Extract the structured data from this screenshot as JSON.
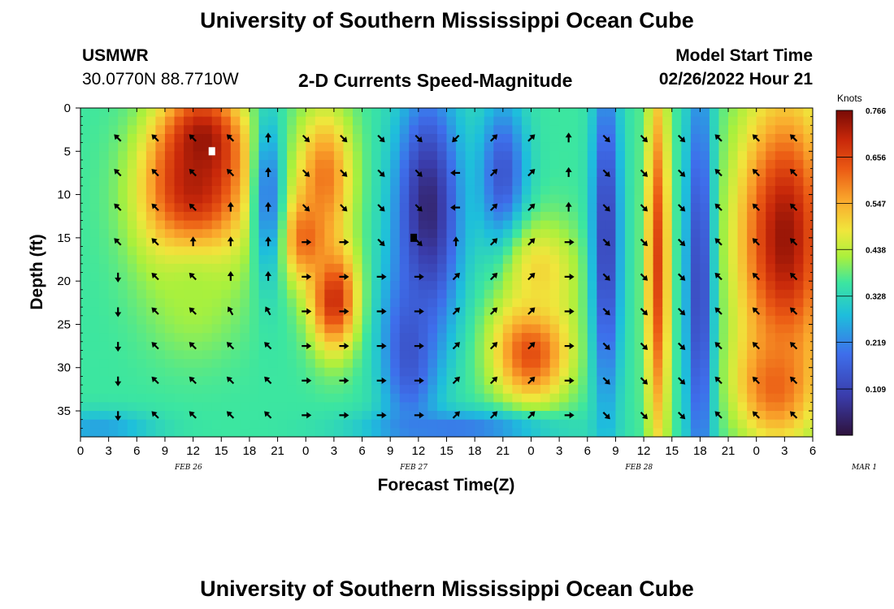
{
  "header": {
    "title": "University of Southern Mississippi Ocean Cube",
    "station": "USMWR",
    "coords": "30.0770N  88.7710W",
    "chart_heading": "2-D Currents Speed-Magnitude",
    "model_label": "Model Start Time",
    "model_time": "02/26/2022 Hour 21"
  },
  "footer": {
    "title": "University of Southern Mississippi Ocean Cube"
  },
  "chart_data": {
    "type": "heatmap",
    "title": "2-D Currents Speed-Magnitude",
    "xlabel": "Forecast Time(Z)",
    "ylabel": "Depth (ft)",
    "x_ticks": [
      "0",
      "3",
      "6",
      "9",
      "12",
      "15",
      "18",
      "21",
      "0",
      "3",
      "6",
      "9",
      "12",
      "15",
      "18",
      "21",
      "0",
      "3",
      "6",
      "9",
      "12",
      "15",
      "18",
      "21",
      "0",
      "3",
      "6"
    ],
    "x_range_hours": [
      0,
      78
    ],
    "date_labels": [
      {
        "text": "FEB 26",
        "hour": 12
      },
      {
        "text": "FEB 27",
        "hour": 36
      },
      {
        "text": "FEB 28",
        "hour": 60
      },
      {
        "text": "MAR 1",
        "hour": 84
      }
    ],
    "y_ticks": [
      0,
      5,
      10,
      15,
      20,
      25,
      30,
      35
    ],
    "y_range_ft": [
      0,
      38
    ],
    "y_inverted": true,
    "colorbar": {
      "unit": "Knots",
      "min": 0.0,
      "max": 0.766,
      "tick_values": [
        0.766,
        0.656,
        0.547,
        0.438,
        0.328,
        0.219,
        0.109
      ],
      "tick_labels": [
        "0.766",
        "0.656",
        "0.547",
        "0.438",
        "0.328",
        "0.219",
        "0.109"
      ]
    },
    "speed_features": [
      {
        "hour": 12,
        "depth": 10,
        "speed": 0.72,
        "hw": 5.5,
        "hd": 9
      },
      {
        "hour": 13,
        "depth": 4,
        "speed": 0.74,
        "hw": 4,
        "hd": 6
      },
      {
        "hour": 12,
        "depth": 22,
        "speed": 0.42,
        "hw": 5,
        "hd": 7
      },
      {
        "hour": 27,
        "depth": 22,
        "speed": 0.7,
        "hw": 2.5,
        "hd": 6
      },
      {
        "hour": 26,
        "depth": 8,
        "speed": 0.6,
        "hw": 3,
        "hd": 8
      },
      {
        "hour": 24,
        "depth": 15,
        "speed": 0.62,
        "hw": 2.5,
        "hd": 5
      },
      {
        "hour": 37,
        "depth": 12,
        "speed": 0.04,
        "hw": 3.5,
        "hd": 14
      },
      {
        "hour": 35,
        "depth": 28,
        "speed": 0.14,
        "hw": 3,
        "hd": 10
      },
      {
        "hour": 20,
        "depth": 10,
        "speed": 0.2,
        "hw": 1.5,
        "hd": 10
      },
      {
        "hour": 45,
        "depth": 8,
        "speed": 0.14,
        "hw": 2.5,
        "hd": 9
      },
      {
        "hour": 48,
        "depth": 28,
        "speed": 0.66,
        "hw": 4,
        "hd": 6
      },
      {
        "hour": 49,
        "depth": 19,
        "speed": 0.5,
        "hw": 4,
        "hd": 6
      },
      {
        "hour": 56,
        "depth": 15,
        "speed": 0.1,
        "hw": 1.5,
        "hd": 20
      },
      {
        "hour": 61.5,
        "depth": 18,
        "speed": 0.66,
        "hw": 1.2,
        "hd": 22
      },
      {
        "hour": 66,
        "depth": 20,
        "speed": 0.09,
        "hw": 1.5,
        "hd": 25
      },
      {
        "hour": 75,
        "depth": 15,
        "speed": 0.74,
        "hw": 5,
        "hd": 16
      },
      {
        "hour": 74,
        "depth": 32,
        "speed": 0.62,
        "hw": 4,
        "hd": 6
      },
      {
        "hour": 2,
        "depth": 37,
        "speed": 0.25,
        "hw": 6,
        "hd": 2
      },
      {
        "hour": 40,
        "depth": 37,
        "speed": 0.2,
        "hw": 10,
        "hd": 2
      }
    ],
    "background_speed": 0.36,
    "vector_columns_hours": [
      4,
      8,
      12,
      16,
      20,
      24,
      28,
      32,
      36,
      40,
      44,
      48,
      52,
      56,
      60,
      64,
      68,
      72,
      76
    ],
    "vector_rows_ft": [
      3.5,
      7.5,
      11.5,
      15.5,
      19.5,
      23.5,
      27.5,
      31.5,
      35.5
    ],
    "vector_directions_deg": [
      [
        135,
        135,
        135,
        135,
        270,
        270,
        270,
        270,
        270
      ],
      [
        135,
        135,
        135,
        135,
        135,
        135,
        135,
        135,
        135
      ],
      [
        135,
        135,
        135,
        90,
        135,
        135,
        135,
        135,
        135
      ],
      [
        135,
        135,
        90,
        90,
        90,
        120,
        135,
        135,
        135
      ],
      [
        90,
        90,
        90,
        90,
        90,
        120,
        135,
        135,
        135
      ],
      [
        315,
        315,
        315,
        0,
        0,
        0,
        0,
        0,
        0
      ],
      [
        315,
        315,
        315,
        0,
        0,
        0,
        0,
        0,
        0
      ],
      [
        315,
        315,
        315,
        315,
        0,
        0,
        0,
        0,
        0
      ],
      [
        315,
        315,
        315,
        315,
        0,
        0,
        0,
        0,
        0
      ],
      [
        225,
        180,
        180,
        90,
        45,
        45,
        45,
        45,
        45
      ],
      [
        45,
        45,
        45,
        45,
        45,
        45,
        45,
        45,
        45
      ],
      [
        45,
        45,
        45,
        45,
        45,
        45,
        45,
        45,
        45
      ],
      [
        90,
        90,
        90,
        0,
        0,
        0,
        0,
        0,
        0
      ],
      [
        315,
        315,
        315,
        315,
        315,
        315,
        315,
        315,
        315
      ],
      [
        315,
        315,
        315,
        315,
        315,
        315,
        315,
        315,
        315
      ],
      [
        315,
        315,
        315,
        315,
        315,
        315,
        315,
        315,
        315
      ],
      [
        135,
        135,
        135,
        135,
        135,
        135,
        135,
        135,
        135
      ],
      [
        135,
        135,
        135,
        135,
        135,
        135,
        135,
        135,
        135
      ],
      [
        135,
        135,
        135,
        135,
        135,
        135,
        135,
        135,
        135
      ]
    ],
    "markers": [
      {
        "hour": 14,
        "depth": 5,
        "color": "#ffffff"
      },
      {
        "hour": 35.5,
        "depth": 15,
        "color": "#000000"
      }
    ]
  }
}
